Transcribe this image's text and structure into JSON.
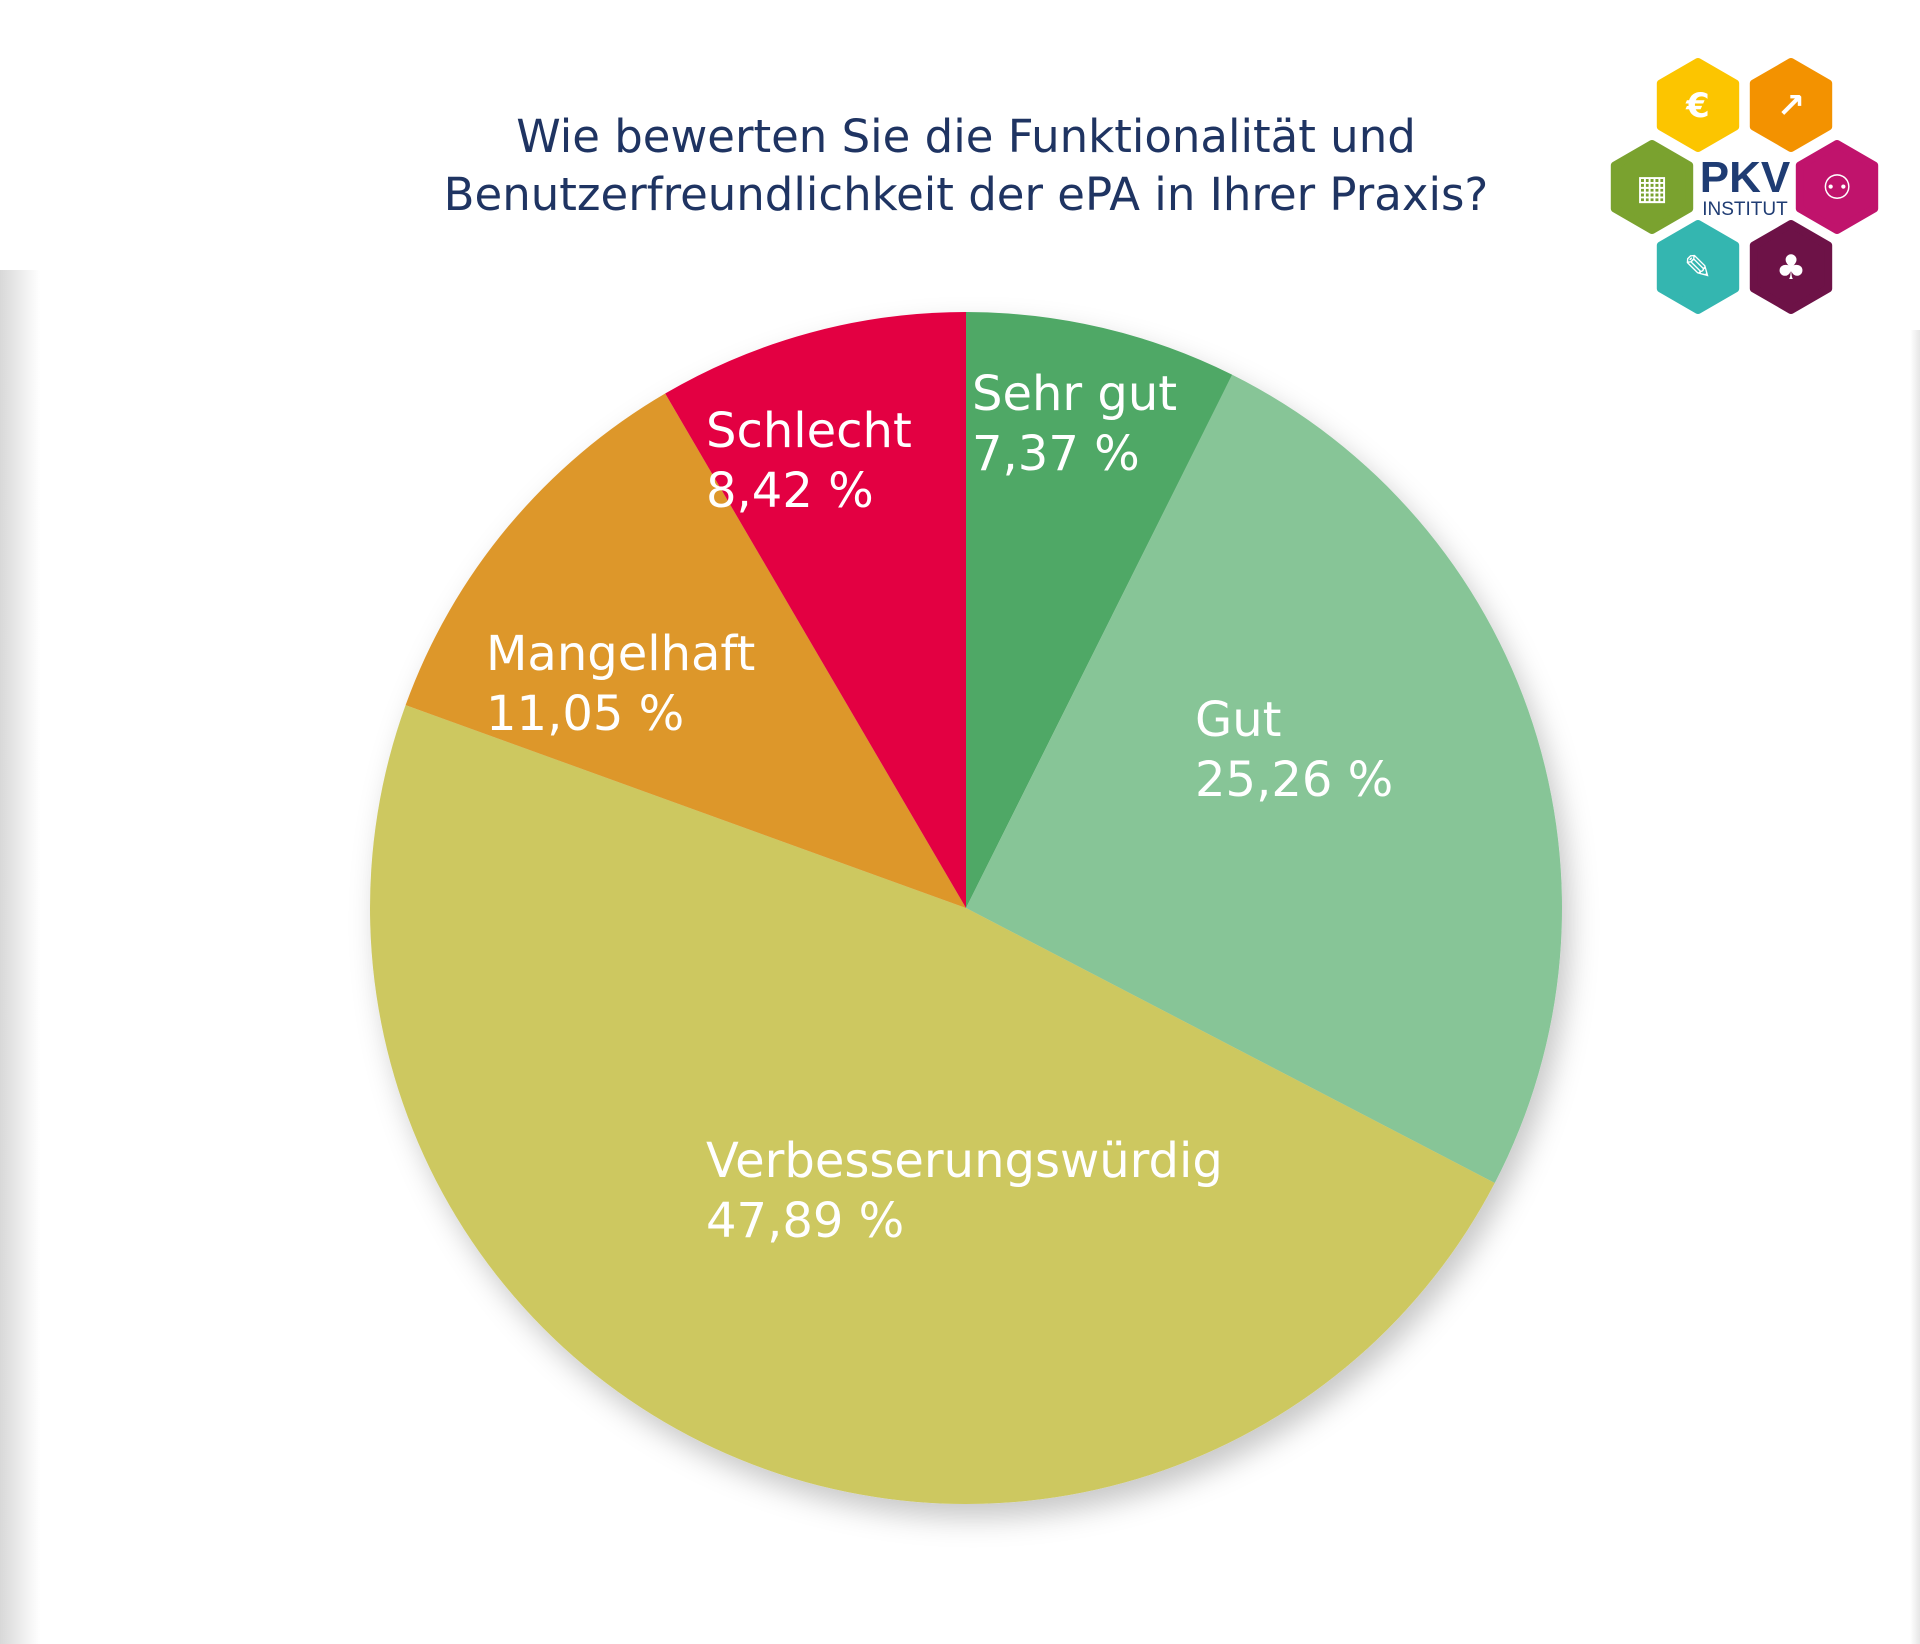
{
  "title": [
    "Wie bewerten Sie die Funktionalität und",
    "Benutzerfreundlichkeit der ePA in Ihrer Praxis?"
  ],
  "logo": {
    "text": "PKV",
    "subtext": "INSTITUT",
    "brand_color": "#1f3c73",
    "icons": [
      {
        "name": "euro-icon",
        "color": "#fcc500"
      },
      {
        "name": "growth-chart-icon",
        "color": "#f39200"
      },
      {
        "name": "puzzle-icon",
        "color": "#7aa22f"
      },
      {
        "name": "people-talking-icon",
        "color": "#c0136c"
      },
      {
        "name": "syringe-icon",
        "color": "#34b6b0"
      },
      {
        "name": "tree-icon",
        "color": "#6d1247"
      }
    ]
  },
  "chart_data": {
    "type": "pie",
    "title": "Wie bewerten Sie die Funktionalität und Benutzerfreundlichkeit der ePA in Ihrer Praxis?",
    "start": "top",
    "direction": "clockwise",
    "slices": [
      {
        "label": "Sehr gut",
        "value": 7.37,
        "display": "7,37  %",
        "color": "#4fa866"
      },
      {
        "label": "Gut",
        "value": 25.26,
        "display": "25,26  %",
        "color": "#87c597"
      },
      {
        "label": "Verbesserungswürdig",
        "value": 47.89,
        "display": "47,89  %",
        "color": "#cdc861"
      },
      {
        "label": "Mangelhaft",
        "value": 11.05,
        "display": "11,05  %",
        "color": "#dd972b"
      },
      {
        "label": "Schlecht",
        "value": 8.42,
        "display": "8,42  %",
        "color": "#e30342"
      }
    ]
  }
}
